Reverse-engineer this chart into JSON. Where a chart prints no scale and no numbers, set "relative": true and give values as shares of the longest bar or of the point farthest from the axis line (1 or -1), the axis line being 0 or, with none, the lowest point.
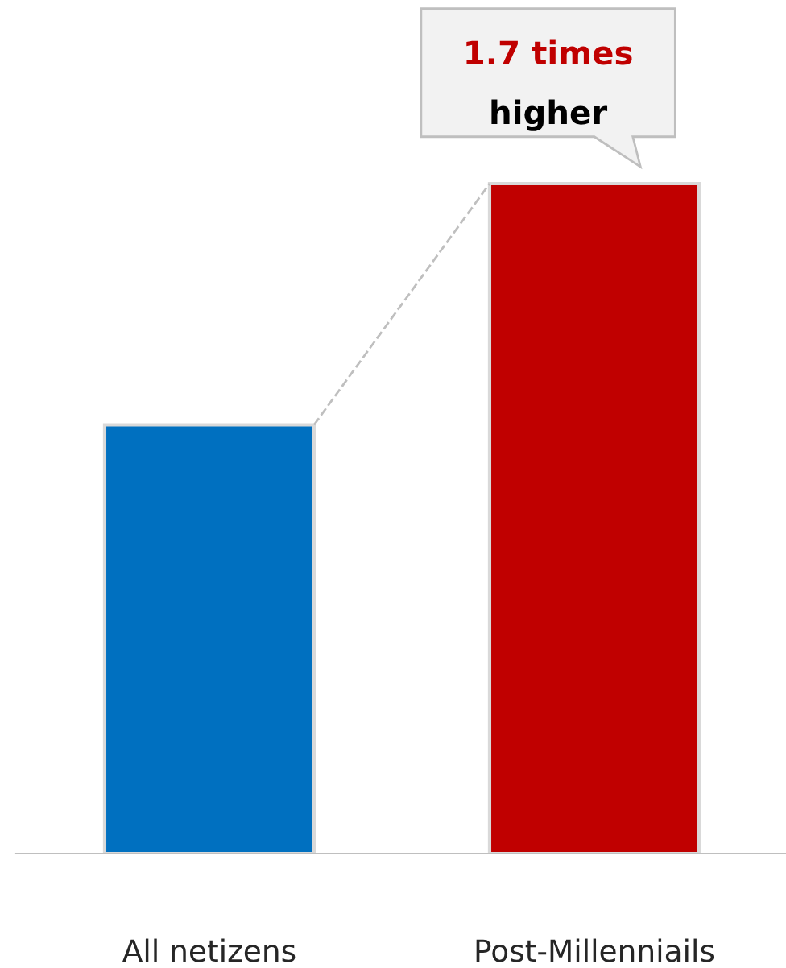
{
  "chart_data": {
    "type": "bar",
    "relative": true,
    "categories": [
      "All netizens",
      "Post-Millenniails"
    ],
    "values": [
      0.64,
      1
    ],
    "colors": [
      "#0070c0",
      "#c00000"
    ],
    "annotations": [
      "1.7 times",
      "higher"
    ],
    "grid": false,
    "legend": false
  }
}
